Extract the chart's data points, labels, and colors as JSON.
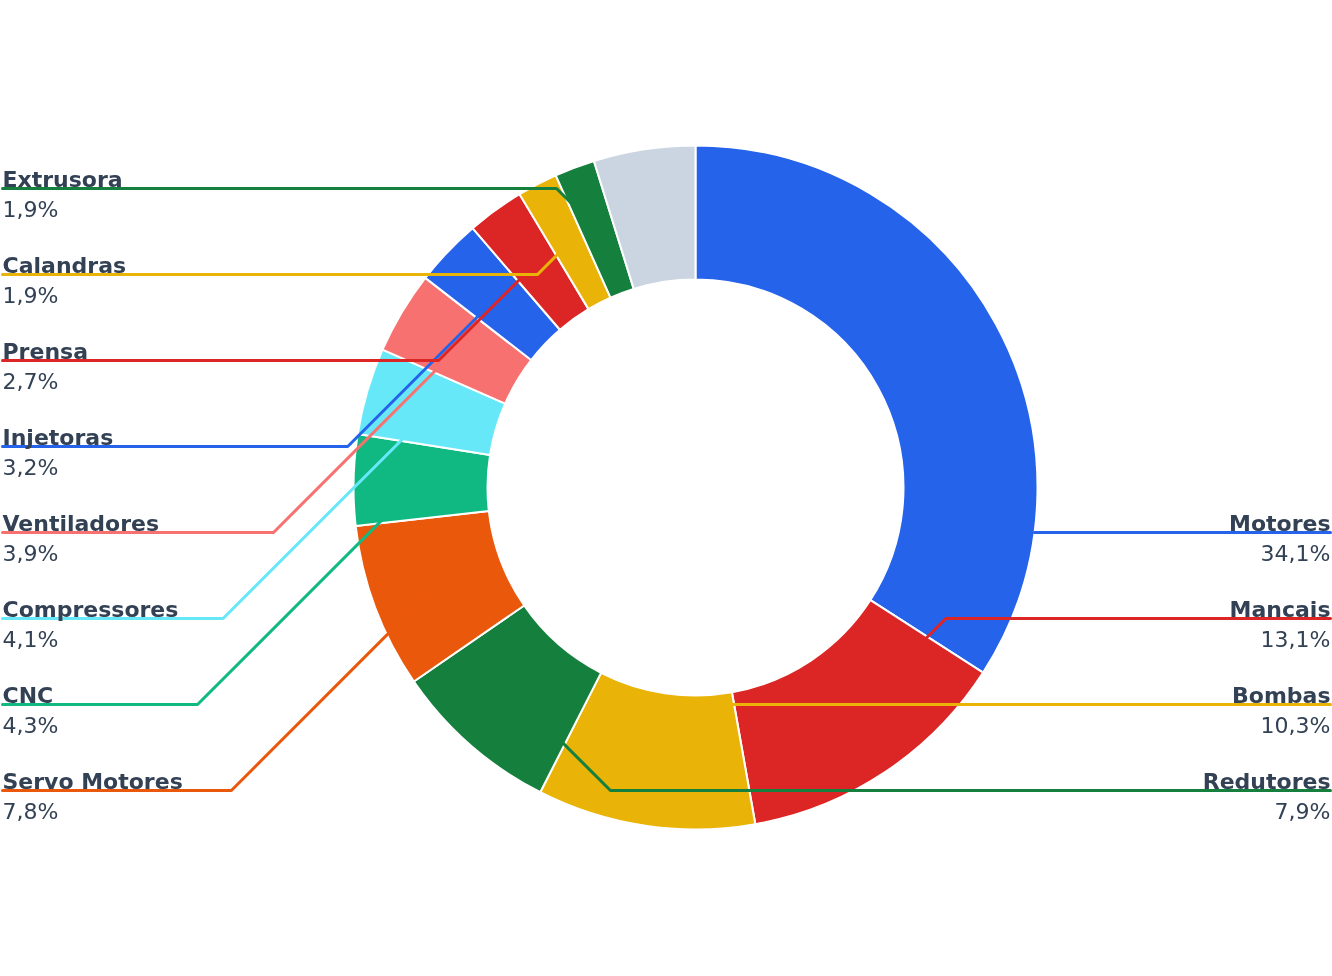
{
  "chart_data": {
    "type": "donut",
    "categories": [
      "Motores",
      "Mancais",
      "Bombas",
      "Redutores",
      "Servo Motores",
      "CNC",
      "Compressores",
      "Ventiladores",
      "Injetoras",
      "Prensa",
      "Calandras",
      "Extrusora",
      null
    ],
    "values": [
      34.1,
      13.1,
      10.3,
      7.9,
      7.8,
      4.3,
      4.1,
      3.9,
      3.2,
      2.7,
      1.9,
      1.9,
      4.8
    ],
    "colors": [
      "#2563eb",
      "#dc2626",
      "#eab308",
      "#15803d",
      "#ea580c",
      "#10b981",
      "#67e8f9",
      "#f87171",
      "#2563eb",
      "#dc2626",
      "#eab308",
      "#15803d",
      "#cbd5e1"
    ],
    "value_labels": [
      "34,1%",
      "13,1%",
      "10,3%",
      "7,9%",
      "7,8%",
      "4,3%",
      "4,1%",
      "3,9%",
      "3,2%",
      "2,7%",
      "1,9%",
      "1,9%",
      null
    ]
  }
}
